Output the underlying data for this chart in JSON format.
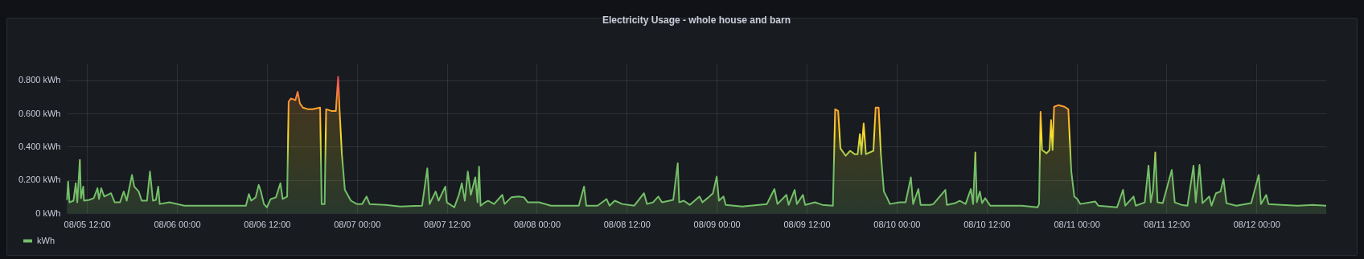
{
  "chart_data": {
    "type": "area",
    "title": "Electricity Usage - whole house and barn",
    "x": [
      "--08-05T09:20",
      "--08-05T09:29",
      "--08-05T09:40",
      "--08-05T10:12",
      "--08-05T10:30",
      "--08-05T10:42",
      "--08-05T11:03",
      "--08-05T11:12",
      "--08-05T11:30",
      "--08-05T11:36",
      "--08-05T12:18",
      "--08-05T12:54",
      "--08-05T13:24",
      "--08-05T13:36",
      "--08-05T13:54",
      "--08-05T14:18",
      "--08-05T15:12",
      "--08-05T15:42",
      "--08-05T16:24",
      "--08-05T16:54",
      "--08-05T17:18",
      "--08-05T18:00",
      "--08-05T18:18",
      "--08-05T18:54",
      "--08-05T19:18",
      "--08-05T20:00",
      "--08-05T20:24",
      "--08-05T20:48",
      "--08-05T21:12",
      "--08-05T21:30",
      "--08-05T21:42",
      "--08-05T23:00",
      "--08-06T01:00",
      "--08-06T05:06",
      "--08-06T09:12",
      "--08-06T09:36",
      "--08-06T09:54",
      "--08-06T10:30",
      "--08-06T10:54",
      "--08-06T11:12",
      "--08-06T11:36",
      "--08-06T12:00",
      "--08-06T12:30",
      "--08-06T13:12",
      "--08-06T13:48",
      "--08-06T14:06",
      "--08-06T14:42",
      "--08-06T14:54",
      "--08-06T15:12",
      "--08-06T15:48",
      "--08-06T16:06",
      "--08-06T16:24",
      "--08-06T16:48",
      "--08-06T17:30",
      "--08-06T18:06",
      "--08-06T19:06",
      "--08-06T19:18",
      "--08-06T19:42",
      "--08-06T19:54",
      "--08-06T20:36",
      "--08-06T21:12",
      "--08-06T21:30",
      "--08-06T21:42",
      "--08-06T22:00",
      "--08-06T22:24",
      "--08-06T23:12",
      "--08-07T00:00",
      "--08-07T00:42",
      "--08-07T01:18",
      "--08-07T01:42",
      "--08-07T03:48",
      "--08-07T05:48",
      "--08-07T08:42",
      "--08-07T09:24",
      "--08-07T09:42",
      "--08-07T10:30",
      "--08-07T10:54",
      "--08-07T11:48",
      "--08-07T12:00",
      "--08-07T13:00",
      "--08-07T13:36",
      "--08-07T14:00",
      "--08-07T14:24",
      "--08-07T14:48",
      "--08-07T15:12",
      "--08-07T15:48",
      "--08-07T16:06",
      "--08-07T16:18",
      "--08-07T16:30",
      "--08-07T17:06",
      "--08-07T17:30",
      "--08-07T18:18",
      "--08-07T19:24",
      "--08-07T19:42",
      "--08-07T20:36",
      "--08-07T21:36",
      "--08-07T22:18",
      "--08-07T22:48",
      "--08-08T00:18",
      "--08-08T01:54",
      "--08-08T05:36",
      "--08-08T06:18",
      "--08-08T06:36",
      "--08-08T08:06",
      "--08-08T09:18",
      "--08-08T09:42",
      "--08-08T10:24",
      "--08-08T11:24",
      "--08-08T13:00",
      "--08-08T14:18",
      "--08-08T14:42",
      "--08-08T15:30",
      "--08-08T16:12",
      "--08-08T16:42",
      "--08-08T18:12",
      "--08-08T18:48",
      "--08-08T19:00",
      "--08-08T19:36",
      "--08-08T20:24",
      "--08-08T21:42",
      "--08-08T22:06",
      "--08-08T22:54",
      "--08-08T23:30",
      "--08-09T00:00",
      "--08-09T00:18",
      "--08-09T00:54",
      "--08-09T01:12",
      "--08-09T03:24",
      "--08-09T06:42",
      "--08-09T07:18",
      "--08-09T07:42",
      "--08-09T08:06",
      "--08-09T09:18",
      "--08-09T09:36",
      "--08-09T10:24",
      "--08-09T10:42",
      "--08-09T11:30",
      "--08-09T11:48",
      "--08-09T13:06",
      "--08-09T14:06",
      "--08-09T15:30",
      "--08-09T15:48",
      "--08-09T16:12",
      "--08-09T16:30",
      "--08-09T17:12",
      "--08-09T17:48",
      "--08-09T18:24",
      "--08-09T18:48",
      "--08-09T19:06",
      "--08-09T19:18",
      "--08-09T19:36",
      "--08-09T19:54",
      "--08-09T20:54",
      "--08-09T21:12",
      "--08-09T21:36",
      "--08-09T21:54",
      "--08-09T22:18",
      "--08-09T22:42",
      "--08-09T23:06",
      "--08-10T00:24",
      "--08-10T01:12",
      "--08-10T01:54",
      "--08-10T02:12",
      "--08-10T02:54",
      "--08-10T03:12",
      "--08-10T04:30",
      "--08-10T04:54",
      "--08-10T06:30",
      "--08-10T06:42",
      "--08-10T07:48",
      "--08-10T08:24",
      "--08-10T09:12",
      "--08-10T09:54",
      "--08-10T10:12",
      "--08-10T10:30",
      "--08-10T10:42",
      "--08-10T11:06",
      "--08-10T11:24",
      "--08-10T11:48",
      "--08-10T12:30",
      "--08-10T14:42",
      "--08-10T16:42",
      "--08-10T18:48",
      "--08-10T19:00",
      "--08-10T19:12",
      "--08-10T19:24",
      "--08-10T20:00",
      "--08-10T20:24",
      "--08-10T20:36",
      "--08-10T20:48",
      "--08-10T21:00",
      "--08-10T21:36",
      "--08-10T22:24",
      "--08-10T22:54",
      "--08-10T23:18",
      "--08-10T23:42",
      "--08-11T00:06",
      "--08-11T00:30",
      "--08-11T02:30",
      "--08-11T02:54",
      "--08-11T05:24",
      "--08-11T06:12",
      "--08-11T06:30",
      "--08-11T07:36",
      "--08-11T07:54",
      "--08-11T09:06",
      "--08-11T09:36",
      "--08-11T09:54",
      "--08-11T10:12",
      "--08-11T10:30",
      "--08-11T10:48",
      "--08-11T11:30",
      "--08-11T12:42",
      "--08-11T13:06",
      "--08-11T14:00",
      "--08-11T14:48",
      "--08-11T15:36",
      "--08-11T15:54",
      "--08-11T16:24",
      "--08-11T16:48",
      "--08-11T17:42",
      "--08-11T18:00",
      "--08-11T18:36",
      "--08-11T19:12",
      "--08-11T19:36",
      "--08-11T20:00",
      "--08-11T21:18",
      "--08-11T23:18",
      "--08-12T00:18",
      "--08-12T00:36",
      "--08-12T01:18",
      "--08-12T01:36",
      "--08-12T03:24",
      "--08-12T05:30",
      "--08-12T07:30",
      "--08-12T09:18"
    ],
    "series": [
      {
        "name": "kWh",
        "color": "#73bf69",
        "values": [
          0.08,
          0.19,
          0.065,
          0.075,
          0.18,
          0.065,
          0.32,
          0.09,
          0.16,
          0.075,
          0.08,
          0.09,
          0.15,
          0.085,
          0.15,
          0.1,
          0.12,
          0.065,
          0.065,
          0.13,
          0.075,
          0.23,
          0.16,
          0.13,
          0.075,
          0.075,
          0.25,
          0.075,
          0.08,
          0.16,
          0.055,
          0.065,
          0.045,
          0.045,
          0.045,
          0.115,
          0.075,
          0.095,
          0.17,
          0.13,
          0.055,
          0.035,
          0.085,
          0.095,
          0.18,
          0.085,
          0.1,
          0.67,
          0.69,
          0.68,
          0.73,
          0.66,
          0.635,
          0.625,
          0.625,
          0.635,
          0.055,
          0.055,
          0.625,
          0.615,
          0.615,
          0.82,
          0.615,
          0.355,
          0.14,
          0.075,
          0.055,
          0.055,
          0.1,
          0.055,
          0.05,
          0.04,
          0.045,
          0.27,
          0.055,
          0.13,
          0.075,
          0.16,
          0.065,
          0.035,
          0.11,
          0.18,
          0.075,
          0.25,
          0.11,
          0.215,
          0.065,
          0.28,
          0.045,
          0.065,
          0.075,
          0.055,
          0.11,
          0.055,
          0.095,
          0.1,
          0.095,
          0.065,
          0.065,
          0.045,
          0.045,
          0.16,
          0.045,
          0.045,
          0.085,
          0.045,
          0.075,
          0.055,
          0.045,
          0.12,
          0.055,
          0.065,
          0.1,
          0.065,
          0.08,
          0.3,
          0.065,
          0.075,
          0.05,
          0.1,
          0.065,
          0.095,
          0.12,
          0.22,
          0.075,
          0.1,
          0.05,
          0.04,
          0.055,
          0.11,
          0.145,
          0.055,
          0.11,
          0.05,
          0.14,
          0.055,
          0.11,
          0.05,
          0.065,
          0.05,
          0.045,
          0.625,
          0.615,
          0.39,
          0.345,
          0.375,
          0.355,
          0.355,
          0.475,
          0.355,
          0.54,
          0.355,
          0.375,
          0.635,
          0.635,
          0.355,
          0.13,
          0.095,
          0.055,
          0.065,
          0.065,
          0.215,
          0.055,
          0.145,
          0.05,
          0.05,
          0.055,
          0.14,
          0.05,
          0.06,
          0.075,
          0.055,
          0.145,
          0.055,
          0.365,
          0.065,
          0.13,
          0.06,
          0.09,
          0.045,
          0.045,
          0.045,
          0.035,
          0.055,
          0.61,
          0.38,
          0.36,
          0.38,
          0.56,
          0.38,
          0.64,
          0.65,
          0.64,
          0.625,
          0.25,
          0.1,
          0.085,
          0.055,
          0.07,
          0.045,
          0.035,
          0.14,
          0.045,
          0.1,
          0.045,
          0.065,
          0.285,
          0.065,
          0.14,
          0.365,
          0.065,
          0.06,
          0.26,
          0.065,
          0.05,
          0.045,
          0.285,
          0.065,
          0.29,
          0.06,
          0.1,
          0.045,
          0.12,
          0.13,
          0.205,
          0.06,
          0.045,
          0.06,
          0.23,
          0.055,
          0.11,
          0.055,
          0.05,
          0.045,
          0.05,
          0.045
        ]
      }
    ],
    "xlim": [
      "--08-05T09:18",
      "--08-12T09:18"
    ],
    "xticks": [
      {
        "value": "--08-05T12:00",
        "label": "08/05 12:00"
      },
      {
        "value": "--08-06T00:00",
        "label": "08/06 00:00"
      },
      {
        "value": "--08-06T12:00",
        "label": "08/06 12:00"
      },
      {
        "value": "--08-07T00:00",
        "label": "08/07 00:00"
      },
      {
        "value": "--08-07T12:00",
        "label": "08/07 12:00"
      },
      {
        "value": "--08-08T00:00",
        "label": "08/08 00:00"
      },
      {
        "value": "--08-08T12:00",
        "label": "08/08 12:00"
      },
      {
        "value": "--08-09T00:00",
        "label": "08/09 00:00"
      },
      {
        "value": "--08-09T12:00",
        "label": "08/09 12:00"
      },
      {
        "value": "--08-10T00:00",
        "label": "08/10 00:00"
      },
      {
        "value": "--08-10T12:00",
        "label": "08/10 12:00"
      },
      {
        "value": "--08-11T00:00",
        "label": "08/11 00:00"
      },
      {
        "value": "--08-11T12:00",
        "label": "08/11 12:00"
      },
      {
        "value": "--08-12T00:00",
        "label": "08/12 00:00"
      }
    ],
    "ylim": [
      0,
      0.9
    ],
    "yticks": [
      {
        "value": 0,
        "label": "0 kWh"
      },
      {
        "value": 0.2,
        "label": "0.200 kWh"
      },
      {
        "value": 0.4,
        "label": "0.400 kWh"
      },
      {
        "value": 0.6,
        "label": "0.600 kWh"
      },
      {
        "value": 0.8,
        "label": "0.800 kWh"
      }
    ],
    "grid": true,
    "legend": "bottom left"
  }
}
